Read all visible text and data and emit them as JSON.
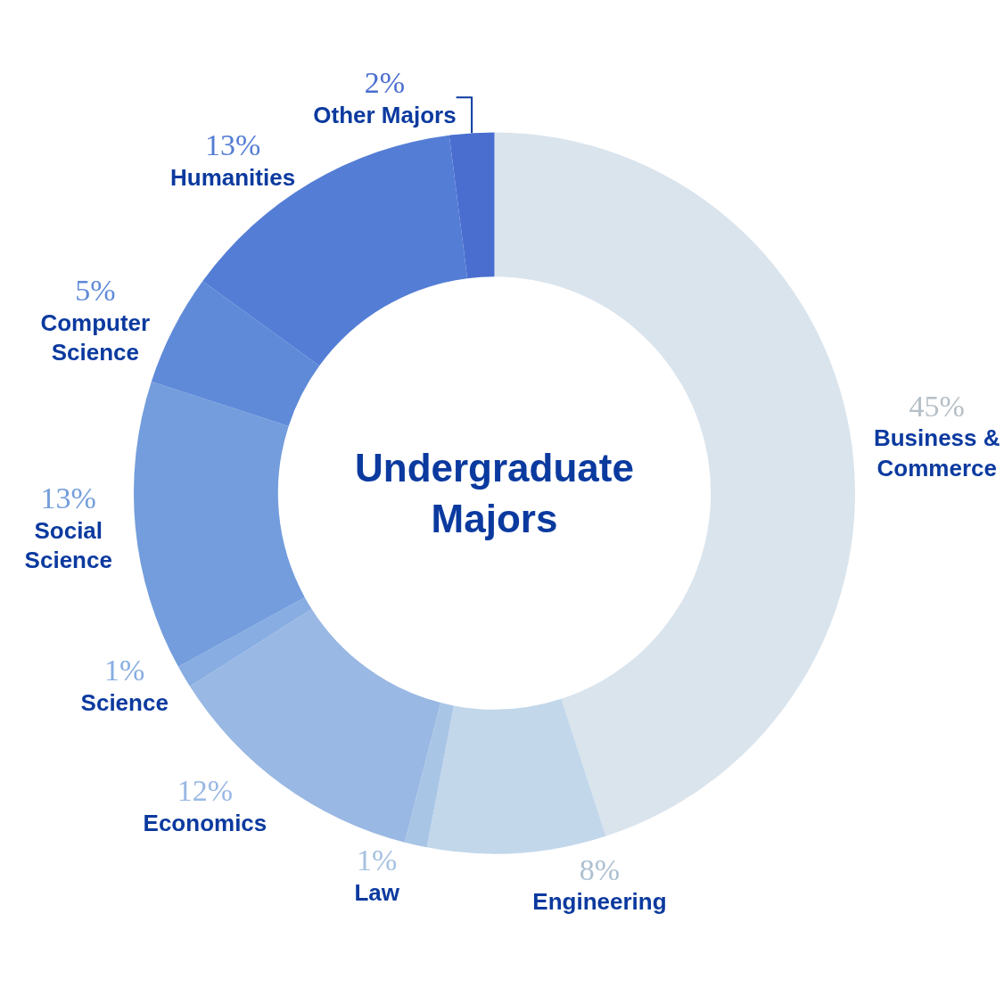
{
  "chart_data": {
    "type": "donut",
    "title": "Undergraduate Majors",
    "categories": [
      "Business & Commerce",
      "Engineering",
      "Law",
      "Economics",
      "Science",
      "Social Science",
      "Computer Science",
      "Humanities",
      "Other Majors"
    ],
    "values": [
      45,
      8,
      1,
      12,
      1,
      13,
      5,
      13,
      2
    ],
    "colors": [
      "#dae4ed",
      "#c2d7ea",
      "#a9c5e6",
      "#99b8e3",
      "#87ade2",
      "#739ddc",
      "#5f8ad8",
      "#547dd5",
      "#4a6ed0"
    ],
    "value_labels": [
      "45%",
      "8%",
      "1%",
      "12%",
      "1%",
      "13%",
      "5%",
      "13%",
      "2%"
    ],
    "legend": false
  }
}
